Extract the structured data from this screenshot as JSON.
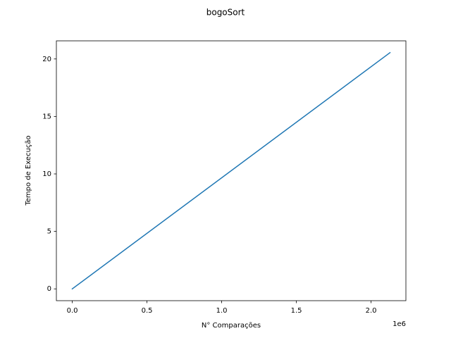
{
  "chart_data": {
    "type": "line",
    "title": "bogoSort",
    "x_label": "N° Comparações",
    "y_label": "Tempo de Execução",
    "x_offset_label": "1e6",
    "x": [
      0,
      2127000
    ],
    "values": [
      0,
      20.55
    ],
    "color": "#1f77b4",
    "xlim": [
      -106350,
      2233350
    ],
    "ylim": [
      -1.0275,
      21.5775
    ],
    "xticks": [
      {
        "value": 0,
        "label": "0.0"
      },
      {
        "value": 500000,
        "label": "0.5"
      },
      {
        "value": 1000000,
        "label": "1.0"
      },
      {
        "value": 1500000,
        "label": "1.5"
      },
      {
        "value": 2000000,
        "label": "2.0"
      }
    ],
    "yticks": [
      0,
      5,
      10,
      15,
      20
    ]
  }
}
